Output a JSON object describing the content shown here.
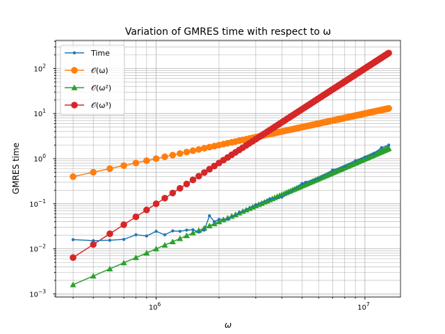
{
  "chart_data": {
    "type": "line",
    "title": "Variation of GMRES time with respect to ω",
    "xlabel": "ω",
    "ylabel": "GMRES time",
    "xscale": "log",
    "yscale": "log",
    "xlim": [
      330000,
      14800000
    ],
    "ylim": [
      0.00085,
      420
    ],
    "grid": true,
    "grid_minor": true,
    "legend_position": "top-left",
    "x_major_ticks": [
      {
        "value": 1000000,
        "base": "10",
        "exp": "6"
      },
      {
        "value": 10000000,
        "base": "10",
        "exp": "7"
      }
    ],
    "y_major_ticks": [
      {
        "value": 0.001,
        "base": "10",
        "exp": "−3"
      },
      {
        "value": 0.01,
        "base": "10",
        "exp": "−2"
      },
      {
        "value": 0.1,
        "base": "10",
        "exp": "−1"
      },
      {
        "value": 1,
        "base": "10",
        "exp": "0"
      },
      {
        "value": 10,
        "base": "10",
        "exp": "1"
      },
      {
        "value": 100,
        "base": "10",
        "exp": "2"
      }
    ],
    "x_range": {
      "start": 400000,
      "stop": 13000000,
      "step": 100000
    },
    "series": [
      {
        "name": "Time",
        "legend_text": "Time",
        "color": "#1f77b4",
        "marker": "point",
        "anchors": [
          {
            "x": 400000,
            "y": 0.016
          },
          {
            "x": 500000,
            "y": 0.0152
          },
          {
            "x": 600000,
            "y": 0.0155
          },
          {
            "x": 700000,
            "y": 0.0162
          },
          {
            "x": 800000,
            "y": 0.0205
          },
          {
            "x": 900000,
            "y": 0.0193
          },
          {
            "x": 1000000,
            "y": 0.0245
          },
          {
            "x": 1100000,
            "y": 0.0205
          },
          {
            "x": 1200000,
            "y": 0.025
          },
          {
            "x": 1300000,
            "y": 0.0245
          },
          {
            "x": 1400000,
            "y": 0.026
          },
          {
            "x": 1500000,
            "y": 0.0265
          },
          {
            "x": 1600000,
            "y": 0.0235
          },
          {
            "x": 1700000,
            "y": 0.026
          },
          {
            "x": 1800000,
            "y": 0.054
          },
          {
            "x": 1900000,
            "y": 0.04
          },
          {
            "x": 2000000,
            "y": 0.045
          },
          {
            "x": 2200000,
            "y": 0.045
          },
          {
            "x": 2500000,
            "y": 0.064
          },
          {
            "x": 3000000,
            "y": 0.095
          },
          {
            "x": 3500000,
            "y": 0.128
          },
          {
            "x": 4000000,
            "y": 0.14
          },
          {
            "x": 5000000,
            "y": 0.28
          },
          {
            "x": 5200000,
            "y": 0.3
          },
          {
            "x": 6000000,
            "y": 0.36
          },
          {
            "x": 7000000,
            "y": 0.56
          },
          {
            "x": 8000000,
            "y": 0.68
          },
          {
            "x": 9000000,
            "y": 0.9
          },
          {
            "x": 10000000,
            "y": 1.08
          },
          {
            "x": 11000000,
            "y": 1.3
          },
          {
            "x": 12000000,
            "y": 1.75
          },
          {
            "x": 13000000,
            "y": 2.0
          }
        ]
      },
      {
        "name": "O(ω)",
        "legend_text": "𝒪(ω)",
        "color": "#ff7f0e",
        "marker": "circle",
        "formula": {
          "coefficient": 1e-06,
          "exponent": 1
        }
      },
      {
        "name": "O(ω²)",
        "legend_text": "𝒪(ω²)",
        "color": "#2ca02c",
        "marker": "triangle",
        "formula": {
          "coefficient": 1e-14,
          "exponent": 2
        }
      },
      {
        "name": "O(ω³)",
        "legend_text": "𝒪(ω³)",
        "color": "#d62728",
        "marker": "circle",
        "formula": {
          "coefficient": 1e-19,
          "exponent": 3
        }
      }
    ]
  }
}
